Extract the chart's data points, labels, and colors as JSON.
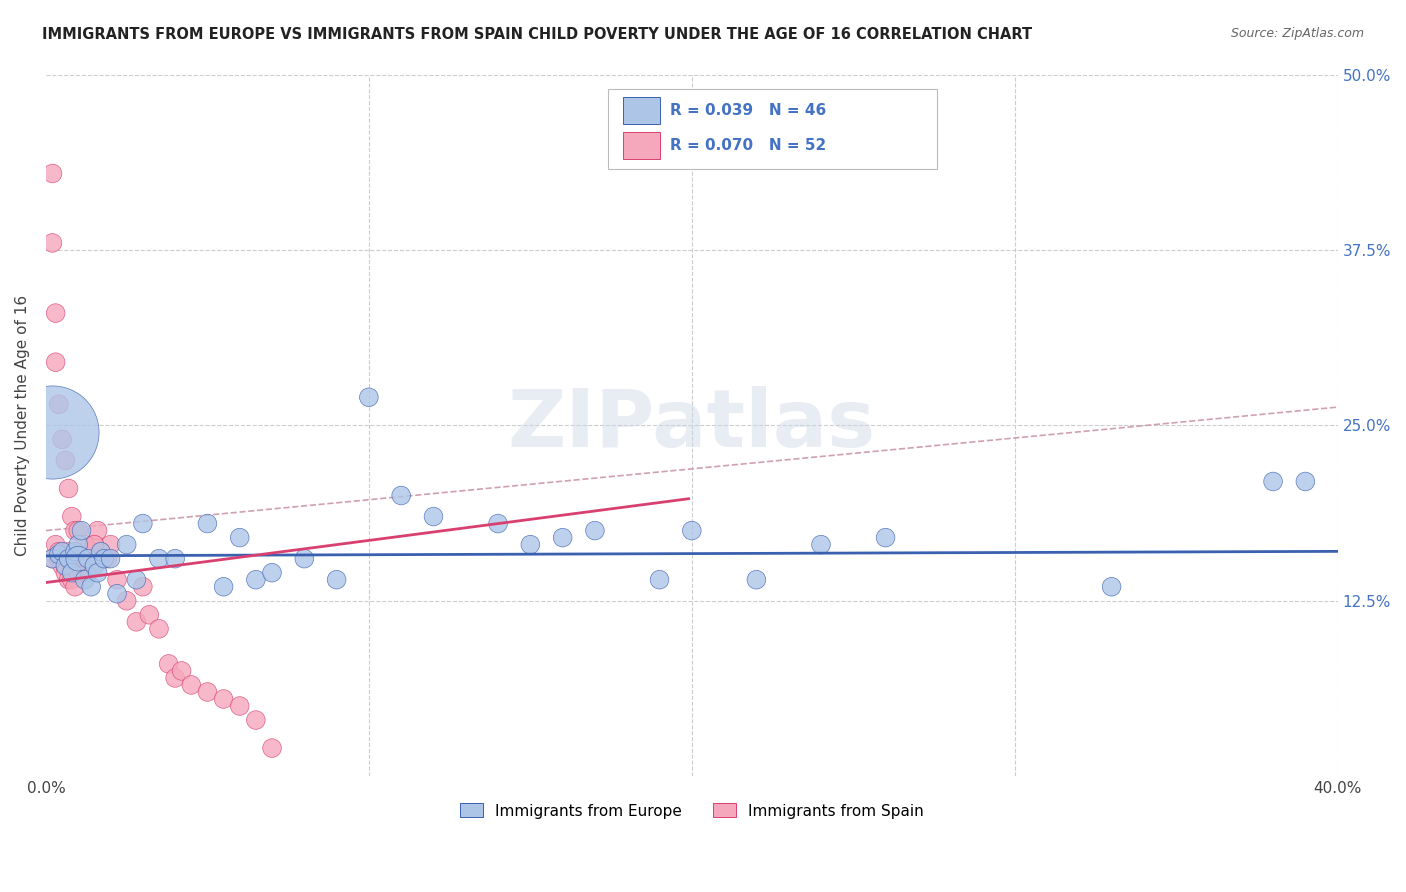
{
  "title": "IMMIGRANTS FROM EUROPE VS IMMIGRANTS FROM SPAIN CHILD POVERTY UNDER THE AGE OF 16 CORRELATION CHART",
  "source": "Source: ZipAtlas.com",
  "ylabel": "Child Poverty Under the Age of 16",
  "xlim": [
    0,
    0.4
  ],
  "ylim": [
    0,
    0.5
  ],
  "xticks": [
    0.0,
    0.1,
    0.2,
    0.3,
    0.4
  ],
  "xtick_labels": [
    "0.0%",
    "",
    "",
    "",
    "40.0%"
  ],
  "ytick_labels": [
    "",
    "12.5%",
    "25.0%",
    "37.5%",
    "50.0%"
  ],
  "yticks": [
    0,
    0.125,
    0.25,
    0.375,
    0.5
  ],
  "R_europe": 0.039,
  "N_europe": 46,
  "R_spain": 0.07,
  "N_spain": 52,
  "color_europe": "#adc6e8",
  "color_spain": "#f5a8bc",
  "trendline_europe": "#3a60b0",
  "trendline_spain": "#d84070",
  "dashed_line_color": "#d0a0b0",
  "watermark": "ZIPatlas",
  "eu_intercept": 0.157,
  "eu_slope": 0.008,
  "sp_intercept": 0.138,
  "sp_slope": 0.3,
  "dash_intercept": 0.175,
  "dash_slope": 0.22,
  "europe_x": [
    0.002,
    0.004,
    0.005,
    0.006,
    0.007,
    0.008,
    0.009,
    0.01,
    0.01,
    0.011,
    0.012,
    0.013,
    0.014,
    0.015,
    0.016,
    0.017,
    0.018,
    0.02,
    0.022,
    0.025,
    0.028,
    0.03,
    0.035,
    0.04,
    0.05,
    0.055,
    0.06,
    0.065,
    0.07,
    0.08,
    0.09,
    0.1,
    0.11,
    0.12,
    0.14,
    0.15,
    0.16,
    0.17,
    0.19,
    0.2,
    0.22,
    0.24,
    0.26,
    0.33,
    0.38,
    0.39
  ],
  "europe_y": [
    0.155,
    0.158,
    0.16,
    0.15,
    0.155,
    0.145,
    0.16,
    0.165,
    0.155,
    0.175,
    0.14,
    0.155,
    0.135,
    0.15,
    0.145,
    0.16,
    0.155,
    0.155,
    0.13,
    0.165,
    0.14,
    0.18,
    0.155,
    0.155,
    0.18,
    0.135,
    0.17,
    0.14,
    0.145,
    0.155,
    0.14,
    0.27,
    0.2,
    0.185,
    0.18,
    0.165,
    0.17,
    0.175,
    0.14,
    0.175,
    0.14,
    0.165,
    0.17,
    0.135,
    0.21,
    0.21
  ],
  "europe_s": [
    20,
    20,
    20,
    20,
    20,
    20,
    20,
    20,
    35,
    20,
    20,
    20,
    20,
    20,
    20,
    20,
    20,
    20,
    20,
    20,
    20,
    20,
    20,
    20,
    20,
    20,
    20,
    20,
    20,
    20,
    20,
    20,
    20,
    20,
    20,
    20,
    20,
    20,
    20,
    20,
    20,
    20,
    20,
    20,
    20,
    20
  ],
  "europe_large_x": [
    0.002
  ],
  "europe_large_y": [
    0.245
  ],
  "europe_large_s": [
    500
  ],
  "spain_x": [
    0.002,
    0.003,
    0.004,
    0.004,
    0.005,
    0.005,
    0.006,
    0.006,
    0.007,
    0.007,
    0.008,
    0.008,
    0.009,
    0.01,
    0.01,
    0.011,
    0.012,
    0.013,
    0.014,
    0.015,
    0.016,
    0.017,
    0.018,
    0.019,
    0.02,
    0.022,
    0.025,
    0.028,
    0.03,
    0.032,
    0.035,
    0.038,
    0.04,
    0.042,
    0.045,
    0.05,
    0.055,
    0.06,
    0.065,
    0.07,
    0.002,
    0.003,
    0.003,
    0.004,
    0.005,
    0.006,
    0.007,
    0.008,
    0.009,
    0.01,
    0.012,
    0.015
  ],
  "spain_y": [
    0.155,
    0.165,
    0.16,
    0.155,
    0.155,
    0.15,
    0.155,
    0.145,
    0.16,
    0.14,
    0.155,
    0.14,
    0.135,
    0.155,
    0.145,
    0.155,
    0.155,
    0.145,
    0.16,
    0.165,
    0.175,
    0.16,
    0.155,
    0.155,
    0.165,
    0.14,
    0.125,
    0.11,
    0.135,
    0.115,
    0.105,
    0.08,
    0.07,
    0.075,
    0.065,
    0.06,
    0.055,
    0.05,
    0.04,
    0.02,
    0.38,
    0.33,
    0.295,
    0.265,
    0.24,
    0.225,
    0.205,
    0.185,
    0.175,
    0.175,
    0.165,
    0.165
  ],
  "spain_s": [
    20,
    20,
    20,
    20,
    20,
    20,
    20,
    20,
    20,
    20,
    20,
    20,
    20,
    20,
    20,
    20,
    20,
    20,
    20,
    20,
    20,
    20,
    20,
    20,
    20,
    20,
    20,
    20,
    20,
    20,
    20,
    20,
    20,
    20,
    20,
    20,
    20,
    20,
    20,
    20,
    20,
    20,
    20,
    20,
    20,
    20,
    20,
    20,
    20,
    20,
    20,
    20
  ],
  "spain_large_x": [
    0.002
  ],
  "spain_large_y": [
    0.43
  ],
  "spain_large_s": [
    20
  ]
}
